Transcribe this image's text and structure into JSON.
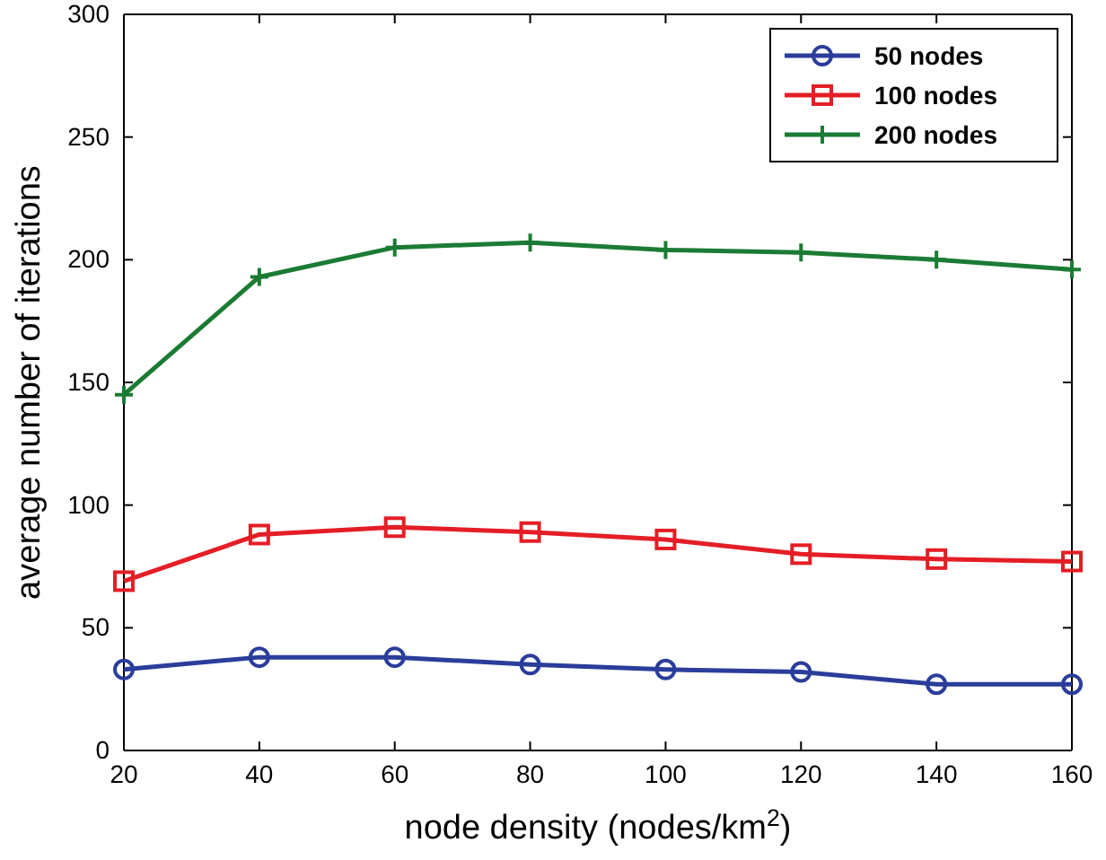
{
  "chart_data": {
    "type": "line",
    "xlabel": "node density (nodes/km$^{2}$)",
    "ylabel": "average number of iterations",
    "x": [
      20,
      40,
      60,
      80,
      100,
      120,
      140,
      160
    ],
    "series": [
      {
        "name": "50 nodes",
        "color": "#2b3d9b",
        "marker": "circle",
        "values": [
          33,
          38,
          38,
          35,
          33,
          32,
          27,
          27
        ]
      },
      {
        "name": "100 nodes",
        "color": "#e41e26",
        "marker": "square",
        "values": [
          69,
          88,
          91,
          89,
          86,
          80,
          78,
          77
        ]
      },
      {
        "name": "200 nodes",
        "color": "#1b7b34",
        "marker": "cross",
        "values": [
          145,
          193,
          205,
          207,
          204,
          203,
          200,
          196
        ]
      }
    ],
    "xlim": [
      20,
      160
    ],
    "xticks": [
      20,
      40,
      60,
      80,
      100,
      120,
      140,
      160
    ],
    "ylim": [
      0,
      300
    ],
    "yticks": [
      0,
      50,
      100,
      150,
      200,
      250,
      300
    ],
    "grid": false,
    "legend": "top right"
  }
}
